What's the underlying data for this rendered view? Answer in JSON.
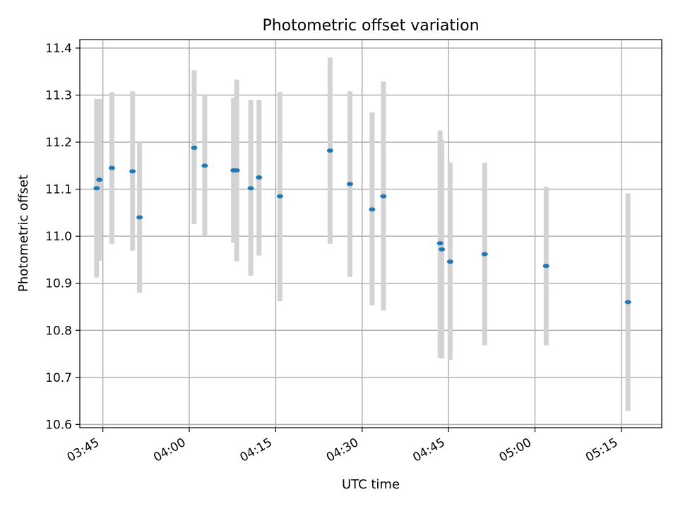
{
  "chart_data": {
    "type": "scatter",
    "title": "Photometric offset variation",
    "xlabel": "UTC time",
    "ylabel": "Photometric offset",
    "xlim": [
      "03:41",
      "05:22"
    ],
    "ylim": [
      10.593,
      11.418
    ],
    "x_ticks": [
      "03:45",
      "04:00",
      "04:15",
      "04:30",
      "04:45",
      "05:00",
      "05:15"
    ],
    "y_ticks": [
      10.6,
      10.7,
      10.8,
      10.9,
      11.0,
      11.1,
      11.2,
      11.3,
      11.4
    ],
    "grid": true,
    "marker_color": "#1f77b4",
    "errorbar_color": "#d3d3d3",
    "points": [
      {
        "x": "03:43:55",
        "y": 11.102,
        "ylow": 10.912,
        "yhigh": 11.292
      },
      {
        "x": "03:44:24",
        "y": 11.12,
        "ylow": 10.948,
        "yhigh": 11.292
      },
      {
        "x": "03:46:34",
        "y": 11.145,
        "ylow": 10.984,
        "yhigh": 11.306
      },
      {
        "x": "03:50:09",
        "y": 11.138,
        "ylow": 10.969,
        "yhigh": 11.308
      },
      {
        "x": "03:51:22",
        "y": 11.04,
        "ylow": 10.88,
        "yhigh": 11.2
      },
      {
        "x": "04:00:51",
        "y": 11.188,
        "ylow": 11.026,
        "yhigh": 11.353
      },
      {
        "x": "04:02:41",
        "y": 11.15,
        "ylow": 11.0,
        "yhigh": 11.3
      },
      {
        "x": "04:07:41",
        "y": 11.14,
        "ylow": 10.986,
        "yhigh": 11.294
      },
      {
        "x": "04:08:14",
        "y": 11.14,
        "ylow": 10.947,
        "yhigh": 11.333
      },
      {
        "x": "04:10:40",
        "y": 11.102,
        "ylow": 10.916,
        "yhigh": 11.29
      },
      {
        "x": "04:12:06",
        "y": 11.125,
        "ylow": 10.959,
        "yhigh": 11.29
      },
      {
        "x": "04:15:44",
        "y": 11.085,
        "ylow": 10.862,
        "yhigh": 11.307
      },
      {
        "x": "04:24:26",
        "y": 11.182,
        "ylow": 10.984,
        "yhigh": 11.38
      },
      {
        "x": "04:27:53",
        "y": 11.111,
        "ylow": 10.913,
        "yhigh": 11.308
      },
      {
        "x": "04:31:44",
        "y": 11.057,
        "ylow": 10.853,
        "yhigh": 11.263
      },
      {
        "x": "04:33:41",
        "y": 11.085,
        "ylow": 10.842,
        "yhigh": 11.329
      },
      {
        "x": "04:43:32",
        "y": 10.985,
        "ylow": 10.742,
        "yhigh": 11.225
      },
      {
        "x": "04:43:50",
        "y": 10.972,
        "ylow": 10.74,
        "yhigh": 11.205
      },
      {
        "x": "04:45:16",
        "y": 10.946,
        "ylow": 10.737,
        "yhigh": 11.157
      },
      {
        "x": "04:51:16",
        "y": 10.962,
        "ylow": 10.768,
        "yhigh": 11.156
      },
      {
        "x": "05:01:56",
        "y": 10.937,
        "ylow": 10.768,
        "yhigh": 11.105
      },
      {
        "x": "05:16:08",
        "y": 10.86,
        "ylow": 10.629,
        "yhigh": 11.091
      }
    ]
  }
}
